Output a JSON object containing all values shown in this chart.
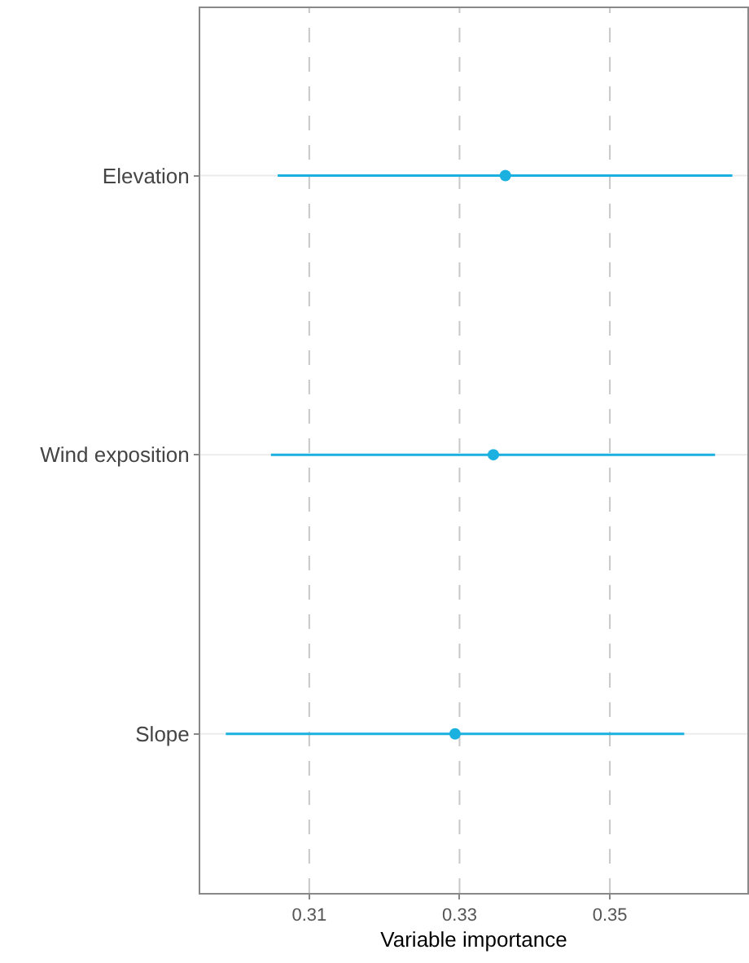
{
  "chart_data": {
    "type": "scatter",
    "orientation": "horizontal",
    "xlabel": "Variable importance",
    "categories": [
      "Elevation",
      "Wind exposition",
      "Slope"
    ],
    "series": [
      {
        "color": "#1ab0e0",
        "values": [
          0.3361,
          0.3345,
          0.3294
        ],
        "errors": [
          [
            0.3058,
            0.3663
          ],
          [
            0.3049,
            0.364
          ],
          [
            0.2989,
            0.3599
          ]
        ]
      }
    ],
    "xlim": [
      0.2955,
      0.3683
    ],
    "xticks": [
      0.31,
      0.33,
      0.35
    ],
    "grid": true,
    "marker": "circle"
  }
}
